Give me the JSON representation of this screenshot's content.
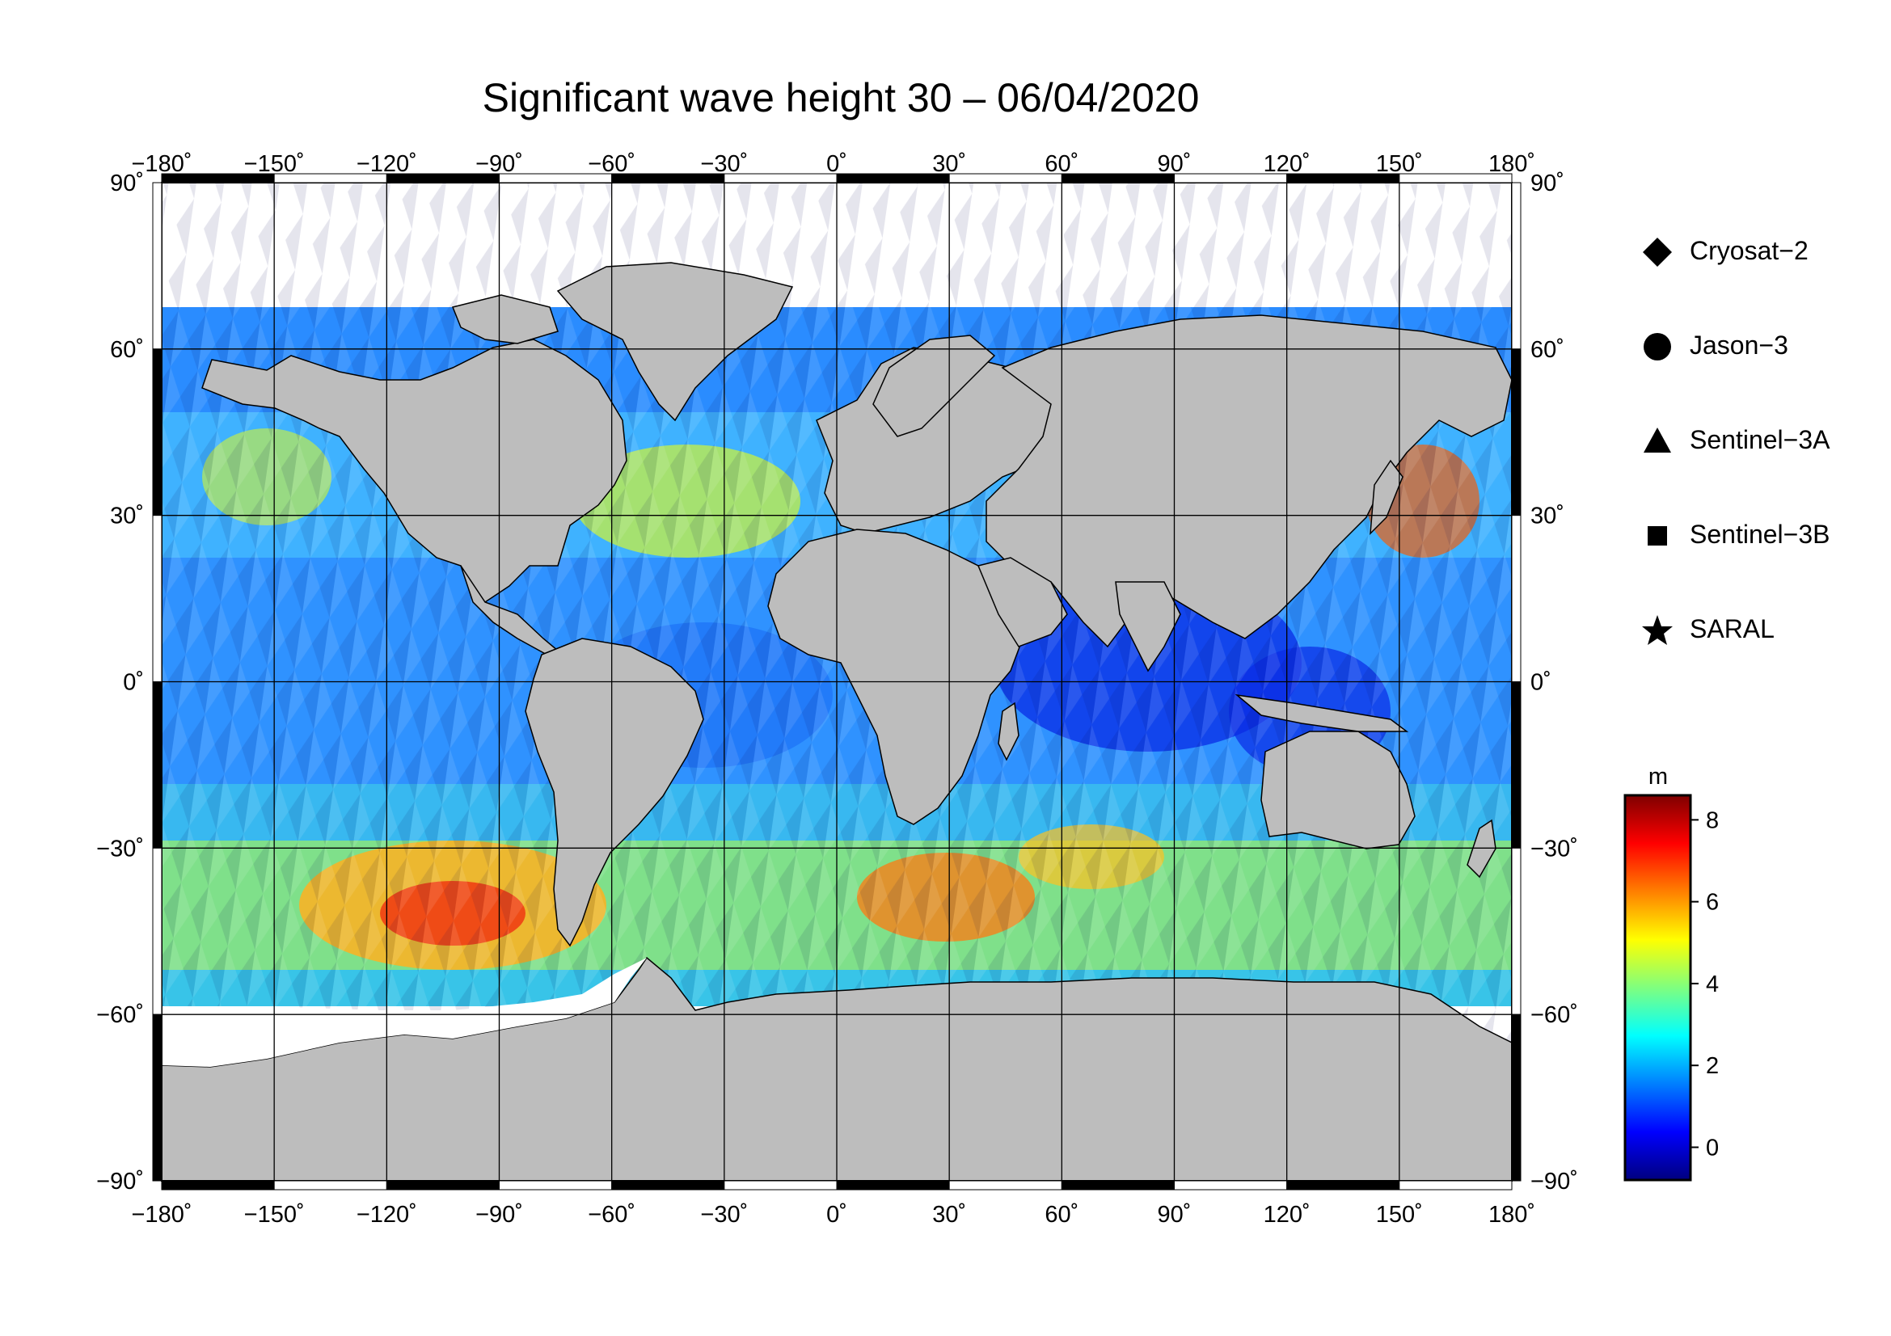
{
  "title": "Significant wave height 30 – 06/04/2020",
  "map": {
    "projection": "equirectangular",
    "lon_range": [
      -180,
      180
    ],
    "lat_range": [
      -90,
      90
    ],
    "lon_ticks": [
      "−180˚",
      "−150˚",
      "−120˚",
      "−90˚",
      "−60˚",
      "−30˚",
      "0˚",
      "30˚",
      "60˚",
      "90˚",
      "120˚",
      "150˚",
      "180˚"
    ],
    "lat_ticks": [
      "90˚",
      "60˚",
      "30˚",
      "0˚",
      "−30˚",
      "−60˚",
      "−90˚"
    ],
    "land_color": "#bdbdbd",
    "ice_color": "#ffffff",
    "grid": true
  },
  "legend": {
    "items": [
      {
        "label": "Cryosat−2",
        "symbol": "diamond"
      },
      {
        "label": "Jason−3",
        "symbol": "circle"
      },
      {
        "label": "Sentinel−3A",
        "symbol": "triangle"
      },
      {
        "label": "Sentinel−3B",
        "symbol": "square"
      },
      {
        "label": "SARAL",
        "symbol": "star"
      }
    ]
  },
  "colorbar": {
    "unit": "m",
    "ticks": [
      "8",
      "6",
      "4",
      "2",
      "0"
    ],
    "range": [
      -0.8,
      8.6
    ],
    "colormap": [
      "#00007f",
      "#0000ff",
      "#007fff",
      "#00ffff",
      "#7fff7f",
      "#ffff00",
      "#ff7f00",
      "#ff0000",
      "#7f0000"
    ]
  }
}
